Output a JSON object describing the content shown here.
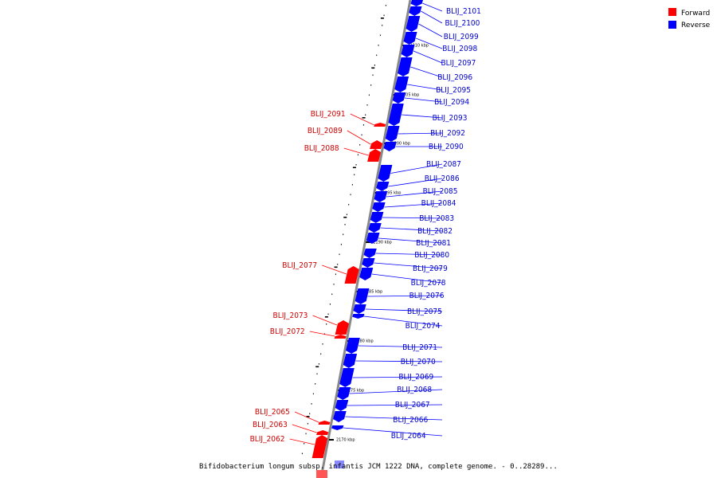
{
  "caption": "Bifidobacterium longum subsp. infantis JCM 1222 DNA, complete genome. - 0..28289...",
  "legend": [
    {
      "label": "Forward",
      "color": "#ff0000"
    },
    {
      "label": "Reverse",
      "color": "#0000ff"
    }
  ],
  "colors": {
    "forward": "#ff0000",
    "forward_text": "#cc0000",
    "reverse": "#0000ff",
    "reverse_text": "#0000cc",
    "backbone": "#888888"
  },
  "ticks": [
    "2210 kbp",
    "2205 kbp",
    "2200 kbp",
    "2195 kbp",
    "2190 kbp",
    "2185 kbp",
    "2180 kbp",
    "2175 kbp",
    "2170 kbp"
  ],
  "reverse_genes": [
    "BLIJ_2101",
    "BLIJ_2100",
    "BLIJ_2099",
    "BLIJ_2098",
    "BLIJ_2097",
    "BLIJ_2096",
    "BLIJ_2095",
    "BLIJ_2094",
    "BLIJ_2093",
    "BLIJ_2092",
    "BLIJ_2090",
    "BLIJ_2087",
    "BLIJ_2086",
    "BLIJ_2085",
    "BLIJ_2084",
    "BLIJ_2083",
    "BLIJ_2082",
    "BLIJ_2081",
    "BLIJ_2080",
    "BLIJ_2079",
    "BLIJ_2078",
    "BLIJ_2076",
    "BLIJ_2075",
    "BLIJ_2074",
    "BLIJ_2071",
    "BLIJ_2070",
    "BLIJ_2069",
    "BLIJ_2068",
    "BLIJ_2067",
    "BLIJ_2066",
    "BLIJ_2064"
  ],
  "forward_genes": [
    "BLIJ_2091",
    "BLIJ_2089",
    "BLIJ_2088",
    "BLIJ_2077",
    "BLIJ_2073",
    "BLIJ_2072",
    "BLIJ_2065",
    "BLIJ_2063",
    "BLIJ_2062"
  ]
}
